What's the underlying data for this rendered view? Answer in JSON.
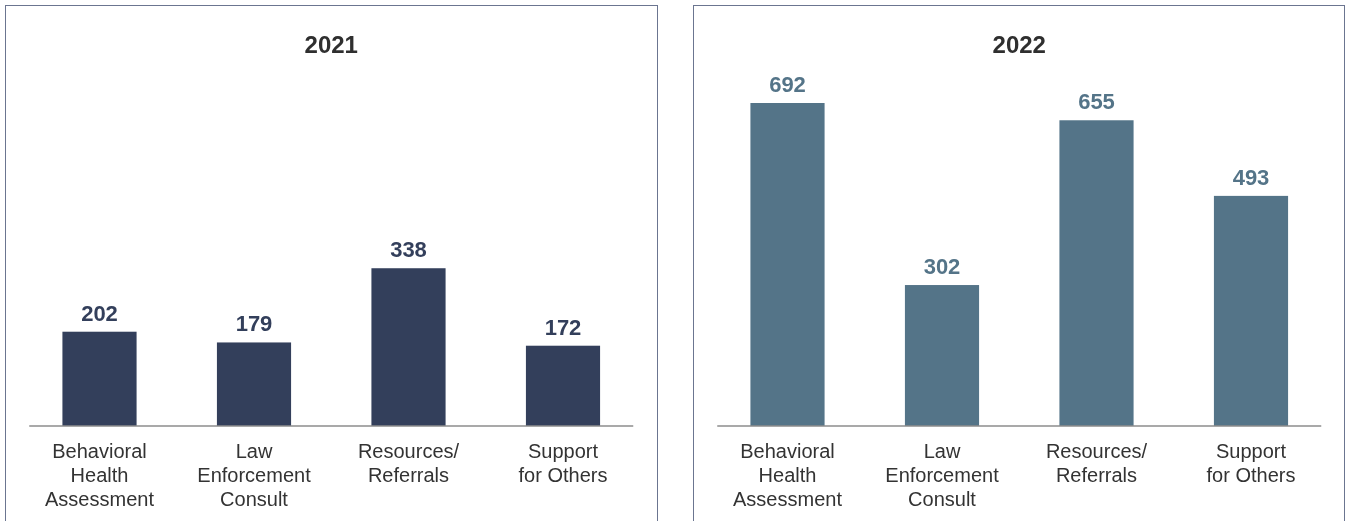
{
  "chart_data": [
    {
      "type": "bar",
      "title": "2021",
      "categories": [
        "Behavioral\nHealth\nAssessment",
        "Law\nEnforcement\nConsult",
        "Resources/\nReferrals",
        "Support\nfor Others"
      ],
      "values": [
        202,
        179,
        338,
        172
      ],
      "color": "#333f5b",
      "data_labels": true
    },
    {
      "type": "bar",
      "title": "2022",
      "categories": [
        "Behavioral\nHealth\nAssessment",
        "Law\nEnforcement\nConsult",
        "Resources/\nReferrals",
        "Support\nfor Others"
      ],
      "values": [
        692,
        302,
        655,
        493
      ],
      "color": "#547488",
      "data_labels": true
    }
  ]
}
